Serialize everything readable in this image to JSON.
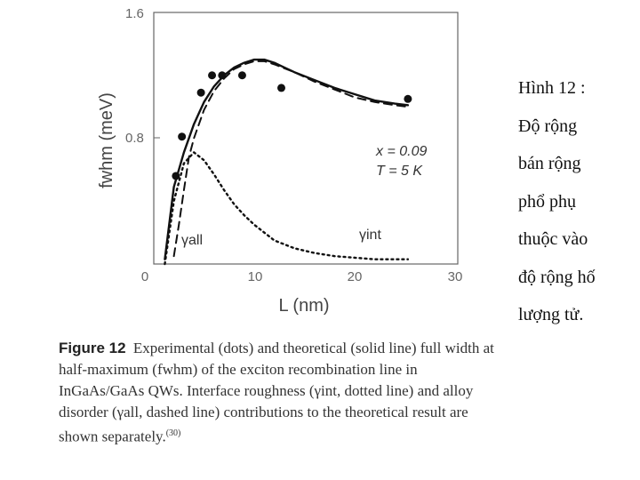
{
  "chart_data": {
    "type": "line",
    "xlabel": "L (nm)",
    "ylabel": "fwhm (meV)",
    "xlim": [
      0,
      30
    ],
    "ylim": [
      0,
      1.6
    ],
    "x_ticks": [
      "0",
      "10",
      "20",
      "30"
    ],
    "y_ticks": [
      "0.8",
      "1.6"
    ],
    "grid": false,
    "annotations": {
      "line1": "x = 0.09",
      "line2": "T = 5 K",
      "gamma_all": "γall",
      "gamma_int": "γint"
    },
    "series": [
      {
        "style": "dots",
        "x": [
          2.2,
          2.8,
          4.7,
          5.8,
          6.8,
          8.8,
          12.7,
          25.3
        ],
        "y": [
          0.56,
          0.81,
          1.09,
          1.2,
          1.2,
          1.2,
          1.12,
          1.05
        ]
      },
      {
        "style": "solid",
        "x": [
          1.1,
          2,
          3,
          4,
          5,
          6,
          7,
          8,
          9,
          10,
          11,
          12,
          13,
          14,
          16,
          18,
          20,
          22,
          24,
          25.3
        ],
        "y": [
          0.03,
          0.49,
          0.71,
          0.89,
          1.03,
          1.13,
          1.2,
          1.25,
          1.28,
          1.3,
          1.3,
          1.28,
          1.25,
          1.22,
          1.17,
          1.12,
          1.08,
          1.04,
          1.02,
          1.01
        ]
      },
      {
        "style": "dashed",
        "x": [
          2.0,
          2.5,
          3,
          3.5,
          4,
          5,
          6,
          7,
          8,
          9,
          10,
          11,
          12,
          14,
          16,
          18,
          20,
          22,
          24,
          25.3
        ],
        "y": [
          0.05,
          0.25,
          0.47,
          0.68,
          0.8,
          0.98,
          1.1,
          1.18,
          1.24,
          1.27,
          1.29,
          1.29,
          1.27,
          1.22,
          1.16,
          1.11,
          1.06,
          1.03,
          1.01,
          1.0
        ]
      },
      {
        "style": "dotted",
        "x": [
          1.1,
          2,
          3,
          4,
          5,
          6,
          7,
          8,
          9,
          10,
          11,
          12,
          14,
          16,
          18,
          20,
          22,
          24,
          25.3
        ],
        "y": [
          0.0,
          0.4,
          0.64,
          0.71,
          0.66,
          0.57,
          0.47,
          0.38,
          0.31,
          0.25,
          0.2,
          0.15,
          0.1,
          0.07,
          0.05,
          0.04,
          0.03,
          0.03,
          0.03
        ]
      }
    ]
  },
  "side_text": {
    "lines": [
      "Hình 12 :",
      "Độ rộng",
      "bán rộng",
      "phổ phụ",
      "thuộc vào",
      "độ rộng hố",
      "lượng tử."
    ]
  },
  "caption": {
    "figure_label": "Figure 12",
    "text": "Experimental (dots) and theoretical (solid line) full width at half-maximum (fwhm) of the exciton recombination line in InGaAs/GaAs QWs. Interface roughness (γint, dotted line) and alloy disorder (γall, dashed line) contributions to the theoretical result are shown separately.",
    "ref": "(30)"
  }
}
